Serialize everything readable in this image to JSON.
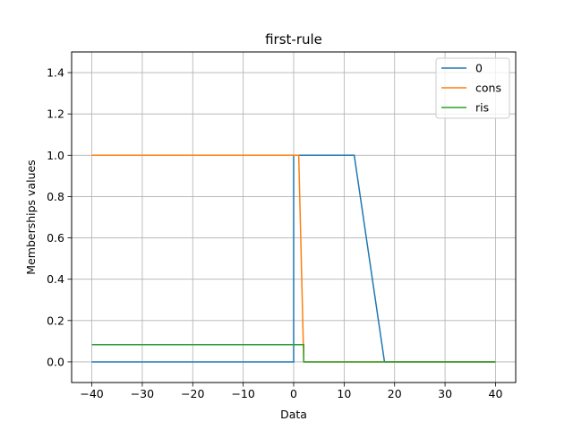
{
  "chart_data": {
    "type": "line",
    "title": "first-rule",
    "xlabel": "Data",
    "ylabel": "Memberships values",
    "xlim": [
      -44,
      44
    ],
    "ylim": [
      -0.1,
      1.5
    ],
    "xticks": [
      -40,
      -30,
      -20,
      -10,
      0,
      10,
      20,
      30,
      40
    ],
    "xtick_labels": [
      "−40",
      "−30",
      "−20",
      "−10",
      "0",
      "10",
      "20",
      "30",
      "40"
    ],
    "yticks": [
      0.0,
      0.2,
      0.4,
      0.6,
      0.8,
      1.0,
      1.2,
      1.4
    ],
    "ytick_labels": [
      "0.0",
      "0.2",
      "0.4",
      "0.6",
      "0.8",
      "1.0",
      "1.2",
      "1.4"
    ],
    "grid": true,
    "legend_position": "top-right",
    "series": [
      {
        "name": "0",
        "color": "#1f77b4",
        "x": [
          -40,
          0,
          0,
          12,
          18,
          40
        ],
        "y": [
          0,
          0,
          1,
          1,
          0,
          0
        ]
      },
      {
        "name": "cons",
        "color": "#ff7f0e",
        "x": [
          -40,
          1,
          2,
          40
        ],
        "y": [
          1,
          1,
          0,
          0
        ]
      },
      {
        "name": "ris",
        "color": "#2ca02c",
        "x": [
          -40,
          2,
          2,
          40
        ],
        "y": [
          0.083,
          0.083,
          0,
          0
        ]
      }
    ]
  }
}
